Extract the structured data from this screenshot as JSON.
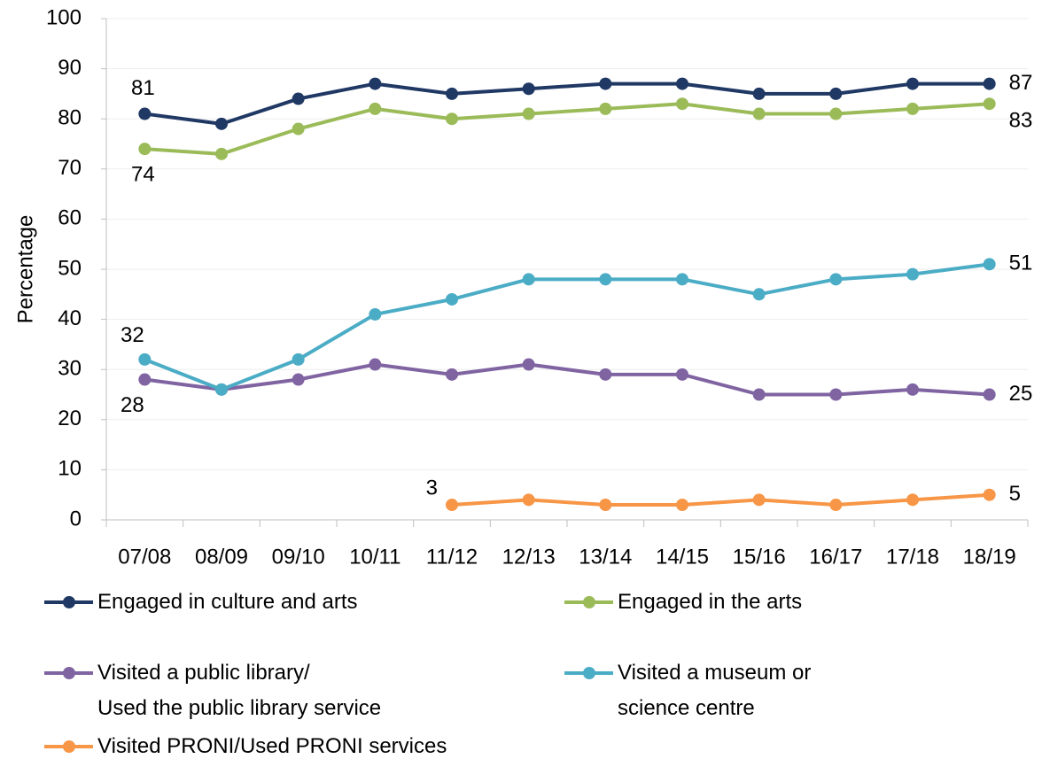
{
  "chart_data": {
    "type": "line",
    "y_label": "Percentage",
    "categories": [
      "07/08",
      "08/09",
      "09/10",
      "10/11",
      "11/12",
      "12/13",
      "13/14",
      "14/15",
      "15/16",
      "16/17",
      "17/18",
      "18/19"
    ],
    "series": [
      {
        "name": "Engaged in culture and arts",
        "color": "#203864",
        "values": [
          81,
          79,
          84,
          87,
          85,
          86,
          87,
          87,
          85,
          85,
          87,
          87
        ]
      },
      {
        "name": "Engaged in the arts",
        "color": "#9bbb59",
        "values": [
          74,
          73,
          78,
          82,
          80,
          81,
          82,
          83,
          81,
          81,
          82,
          83
        ]
      },
      {
        "name": "Visited a public library/\nUsed the public library service",
        "color": "#8064a2",
        "values": [
          28,
          26,
          28,
          31,
          29,
          31,
          29,
          29,
          25,
          25,
          26,
          25
        ]
      },
      {
        "name": "Visited a museum or\nscience centre",
        "color": "#4bacc6",
        "values": [
          32,
          26,
          32,
          41,
          44,
          48,
          48,
          48,
          45,
          48,
          49,
          51
        ]
      },
      {
        "name": "Visited PRONI/Used PRONI services",
        "color": "#f79646",
        "values": [
          null,
          null,
          null,
          null,
          3,
          4,
          3,
          3,
          4,
          3,
          4,
          5
        ]
      }
    ],
    "ylim": [
      0,
      100
    ],
    "yticks": [
      0,
      10,
      20,
      30,
      40,
      50,
      60,
      70,
      80,
      90,
      100
    ],
    "grid": true,
    "data_labels": "ends",
    "legend": "bottom"
  }
}
